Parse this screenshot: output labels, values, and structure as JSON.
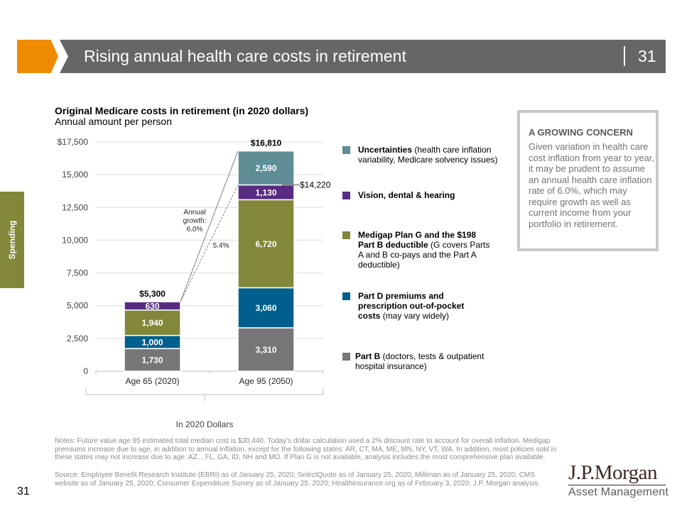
{
  "header": {
    "title": "Rising annual health care costs in retirement",
    "slide_number": "31",
    "accent_color": "#ef8b00",
    "bar_color": "#666666"
  },
  "side_tab": {
    "label": "Spending",
    "color": "#82873a"
  },
  "chart_data": {
    "type": "bar",
    "stacked": true,
    "title": "Original Medicare costs in retirement (in 2020 dollars)",
    "subtitle": "Annual amount per person",
    "categories": [
      "Age 65 (2020)",
      "Age 95 (2050)"
    ],
    "xlabel": "In 2020 Dollars",
    "ylabel": "",
    "ylim": [
      0,
      17500
    ],
    "yticks": [
      0,
      2500,
      5000,
      7500,
      10000,
      12500,
      15000,
      17500
    ],
    "ytick_labels": [
      "0",
      "2,500",
      "5,000",
      "7,500",
      "10,000",
      "12,500",
      "15,000",
      "$17,500"
    ],
    "grid": true,
    "series": [
      {
        "name": "Part B",
        "color": "#767678",
        "values": [
          1730,
          3310
        ],
        "labels": [
          "1,730",
          "3,310"
        ]
      },
      {
        "name": "Part D premiums and prescription out-of-pocket costs",
        "color": "#005f8c",
        "values": [
          1000,
          3060
        ],
        "labels": [
          "1,000",
          "3,060"
        ]
      },
      {
        "name": "Medigap Plan G and the $198 Part B deductible",
        "color": "#82873a",
        "values": [
          1940,
          6720
        ],
        "labels": [
          "1,940",
          "6,720"
        ]
      },
      {
        "name": "Vision, dental & hearing",
        "color": "#582c83",
        "values": [
          630,
          1130
        ],
        "labels": [
          "630",
          "1,130"
        ]
      },
      {
        "name": "Uncertainties",
        "color": "#5f8d95",
        "values": [
          0,
          2590
        ],
        "labels": [
          "",
          "2,590"
        ]
      }
    ],
    "totals": [
      5300,
      16810
    ],
    "total_labels": [
      "$5,300",
      "$16,810"
    ],
    "annotations": {
      "subtotal_value": 14220,
      "subtotal_label": "$14,220",
      "growth_solid_label_lines": [
        "Annual",
        "growth:",
        "6.0%"
      ],
      "growth_dashed_label": "5.4%"
    },
    "legend_placement": "right"
  },
  "legend": [
    {
      "bold": "Uncertainties",
      "rest": " (health care inflation variability, Medicare solvency issues)",
      "color": "#5f8d95"
    },
    {
      "bold": "Vision, dental & hearing",
      "rest": "",
      "color": "#582c83"
    },
    {
      "bold": "Medigap Plan G and the $198 Part B deductible",
      "rest": " (G covers Parts A and B co-pays and the Part A deductible)",
      "color": "#82873a"
    },
    {
      "bold": "Part D premiums and prescription out-of-pocket costs",
      "rest": " (may vary widely)",
      "color": "#005f8c"
    },
    {
      "bold": "Part B",
      "rest": " (doctors, tests & outpatient hospital insurance)",
      "color": "#767678"
    }
  ],
  "callout": {
    "title": "A GROWING CONCERN",
    "body": "Given variation in health care cost inflation from year to year, it may be prudent to assume an annual health care inflation rate of 6.0%, which may require growth as well as current income from your portfolio in retirement."
  },
  "notes": "Notes: Future value age 95 estimated total median cost is $30,440. Today’s dollar calculation used a 2% discount rate to account for overall inflation. Medigap premiums increase due to age, in addition to annual inflation, except for the following states: AR, CT, MA, ME, MN, NY, VT, WA. In addition, most policies sold in these states may not increase due to age: AZ. , FL, GA, ID, NH and MO. If Plan G is not available, analysis includes the most comprehensive plan available.",
  "source": "Source: Employee Benefit Research Institute (EBRI) as of January 25, 2020; SelectQuote as of January 25, 2020; Milliman as of January 25, 2020; CMS website as of January 25, 2020; Consumer Expenditure Survey as of January 25, 2020; Healthinsurance.org as of February 3, 2020; J.P. Morgan analysis.",
  "footer": {
    "page_number": "31",
    "logo_main": "J.P.Morgan",
    "logo_sub": "Asset Management"
  }
}
